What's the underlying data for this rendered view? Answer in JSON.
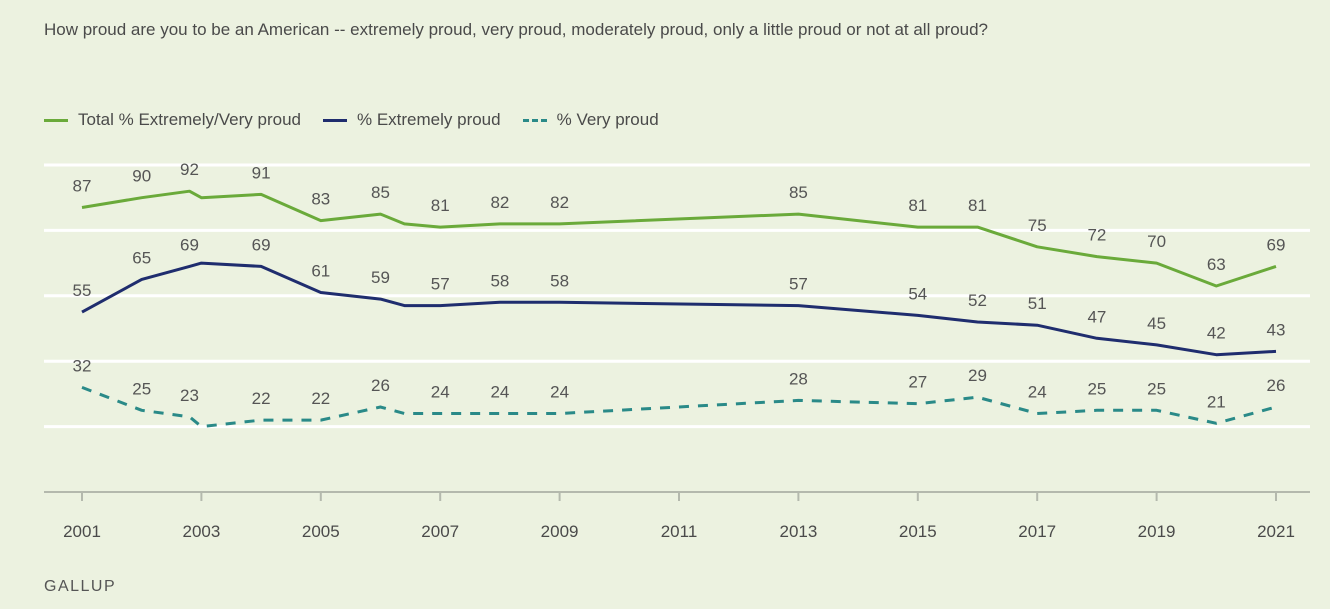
{
  "source": "GALLUP",
  "colors": {
    "background": "#ecf2e0",
    "gridline": "#ffffff",
    "axis": "#b4b9ad",
    "label": "#555555"
  },
  "chart_data": {
    "type": "line",
    "title": "How proud are you to be an American -- extremely proud, very proud, moderately proud, only a little proud or not at all proud?",
    "xlabel": "",
    "ylabel": "",
    "ylim": [
      0,
      100
    ],
    "xlim": [
      2001,
      2021
    ],
    "grid": true,
    "legend_position": "top-left",
    "x_ticks": [
      "2001",
      "2003",
      "2005",
      "2007",
      "2009",
      "2011",
      "2013",
      "2015",
      "2017",
      "2019",
      "2021"
    ],
    "series": [
      {
        "name": "Total % Extremely/Very proud",
        "color": "#6aaa3a",
        "dash": "solid",
        "points": [
          {
            "x": 2001,
            "y": 87,
            "label": "87"
          },
          {
            "x": 2002,
            "y": 90,
            "label": "90"
          },
          {
            "x": 2002.8,
            "y": 92,
            "label": "92"
          },
          {
            "x": 2003,
            "y": 90,
            "label": ""
          },
          {
            "x": 2004,
            "y": 91,
            "label": "91"
          },
          {
            "x": 2005,
            "y": 83,
            "label": "83"
          },
          {
            "x": 2006,
            "y": 85,
            "label": "85"
          },
          {
            "x": 2006.4,
            "y": 82,
            "label": ""
          },
          {
            "x": 2007,
            "y": 81,
            "label": "81"
          },
          {
            "x": 2008,
            "y": 82,
            "label": "82"
          },
          {
            "x": 2009,
            "y": 82,
            "label": "82"
          },
          {
            "x": 2013,
            "y": 85,
            "label": "85"
          },
          {
            "x": 2015,
            "y": 81,
            "label": "81"
          },
          {
            "x": 2016,
            "y": 81,
            "label": "81"
          },
          {
            "x": 2017,
            "y": 75,
            "label": "75"
          },
          {
            "x": 2018,
            "y": 72,
            "label": "72"
          },
          {
            "x": 2019,
            "y": 70,
            "label": "70"
          },
          {
            "x": 2020,
            "y": 63,
            "label": "63"
          },
          {
            "x": 2021,
            "y": 69,
            "label": "69"
          }
        ]
      },
      {
        "name": "% Extremely proud",
        "color": "#1f2d6e",
        "dash": "solid",
        "points": [
          {
            "x": 2001,
            "y": 55,
            "label": "55"
          },
          {
            "x": 2002,
            "y": 65,
            "label": "65"
          },
          {
            "x": 2002.8,
            "y": 69,
            "label": "69"
          },
          {
            "x": 2003,
            "y": 70,
            "label": ""
          },
          {
            "x": 2004,
            "y": 69,
            "label": "69"
          },
          {
            "x": 2005,
            "y": 61,
            "label": "61"
          },
          {
            "x": 2006,
            "y": 59,
            "label": "59"
          },
          {
            "x": 2006.4,
            "y": 57,
            "label": ""
          },
          {
            "x": 2007,
            "y": 57,
            "label": "57"
          },
          {
            "x": 2008,
            "y": 58,
            "label": "58"
          },
          {
            "x": 2009,
            "y": 58,
            "label": "58"
          },
          {
            "x": 2013,
            "y": 57,
            "label": "57"
          },
          {
            "x": 2015,
            "y": 54,
            "label": "54"
          },
          {
            "x": 2016,
            "y": 52,
            "label": "52"
          },
          {
            "x": 2017,
            "y": 51,
            "label": "51"
          },
          {
            "x": 2018,
            "y": 47,
            "label": "47"
          },
          {
            "x": 2019,
            "y": 45,
            "label": "45"
          },
          {
            "x": 2020,
            "y": 42,
            "label": "42"
          },
          {
            "x": 2021,
            "y": 43,
            "label": "43"
          }
        ]
      },
      {
        "name": "% Very proud",
        "color": "#2a8a88",
        "dash": "dashed",
        "points": [
          {
            "x": 2001,
            "y": 32,
            "label": "32"
          },
          {
            "x": 2002,
            "y": 25,
            "label": "25"
          },
          {
            "x": 2002.8,
            "y": 23,
            "label": "23"
          },
          {
            "x": 2003,
            "y": 20,
            "label": ""
          },
          {
            "x": 2004,
            "y": 22,
            "label": "22"
          },
          {
            "x": 2005,
            "y": 22,
            "label": "22"
          },
          {
            "x": 2006,
            "y": 26,
            "label": "26"
          },
          {
            "x": 2006.4,
            "y": 24,
            "label": ""
          },
          {
            "x": 2007,
            "y": 24,
            "label": "24"
          },
          {
            "x": 2008,
            "y": 24,
            "label": "24"
          },
          {
            "x": 2009,
            "y": 24,
            "label": "24"
          },
          {
            "x": 2013,
            "y": 28,
            "label": "28"
          },
          {
            "x": 2015,
            "y": 27,
            "label": "27"
          },
          {
            "x": 2016,
            "y": 29,
            "label": "29"
          },
          {
            "x": 2017,
            "y": 24,
            "label": "24"
          },
          {
            "x": 2018,
            "y": 25,
            "label": "25"
          },
          {
            "x": 2019,
            "y": 25,
            "label": "25"
          },
          {
            "x": 2020,
            "y": 21,
            "label": "21"
          },
          {
            "x": 2021,
            "y": 26,
            "label": "26"
          }
        ]
      }
    ]
  }
}
